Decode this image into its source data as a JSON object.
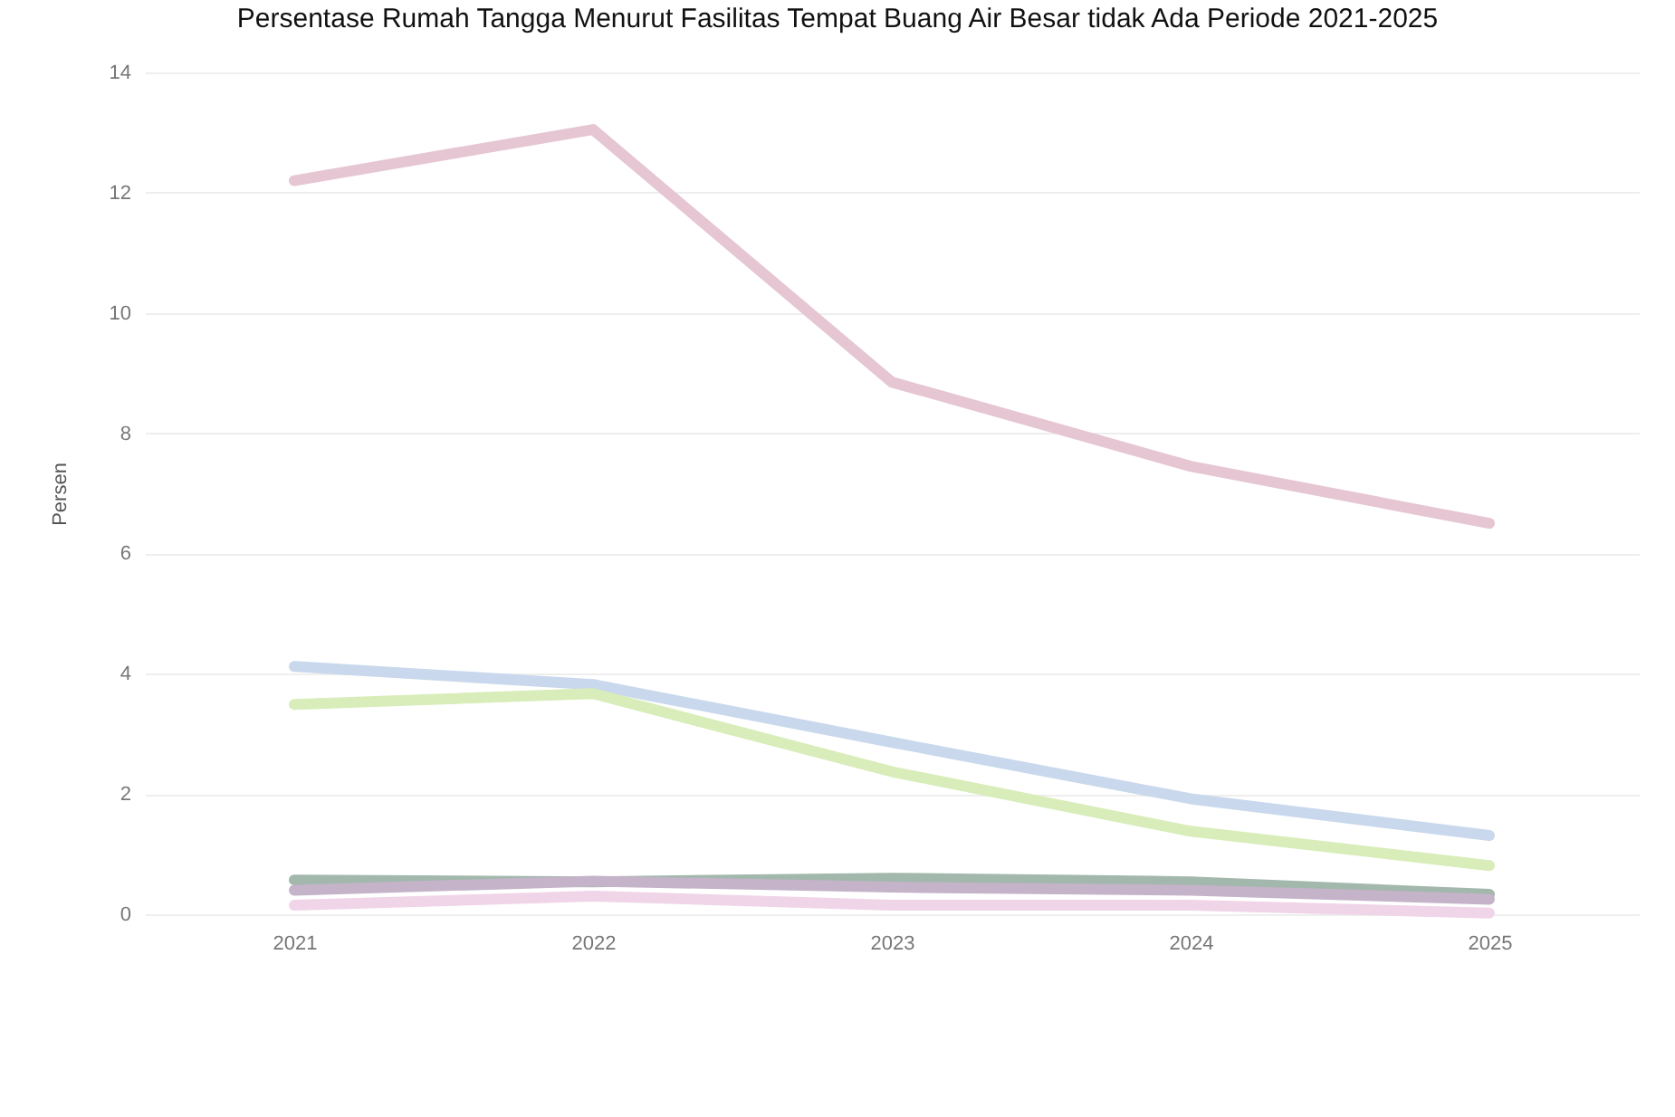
{
  "chart_data": {
    "type": "line",
    "title": "Persentase Rumah Tangga Menurut Fasilitas Tempat Buang Air Besar tidak Ada Periode 2021-2025",
    "ylabel": "Persen",
    "categories": [
      "2021",
      "2022",
      "2023",
      "2024",
      "2025"
    ],
    "ylim": [
      0,
      14
    ],
    "yticks": [
      0,
      2,
      4,
      6,
      8,
      10,
      12,
      14
    ],
    "grid": "y",
    "line_style": "solid",
    "series": [
      {
        "color": "#e5c6d2",
        "values": [
          12.2,
          13.05,
          8.85,
          7.45,
          6.5
        ]
      },
      {
        "color": "#c9d8ec",
        "values": [
          4.12,
          3.82,
          2.86,
          1.92,
          1.31
        ]
      },
      {
        "color": "#d8edb9",
        "values": [
          3.49,
          3.67,
          2.37,
          1.38,
          0.81
        ]
      },
      {
        "color": "#a3b8ad",
        "values": [
          0.57,
          0.54,
          0.6,
          0.54,
          0.33
        ]
      },
      {
        "color": "#c4b3c9",
        "values": [
          0.4,
          0.55,
          0.45,
          0.4,
          0.25
        ]
      },
      {
        "color": "#f0d5e8",
        "values": [
          0.15,
          0.3,
          0.15,
          0.15,
          0.02
        ]
      }
    ]
  }
}
